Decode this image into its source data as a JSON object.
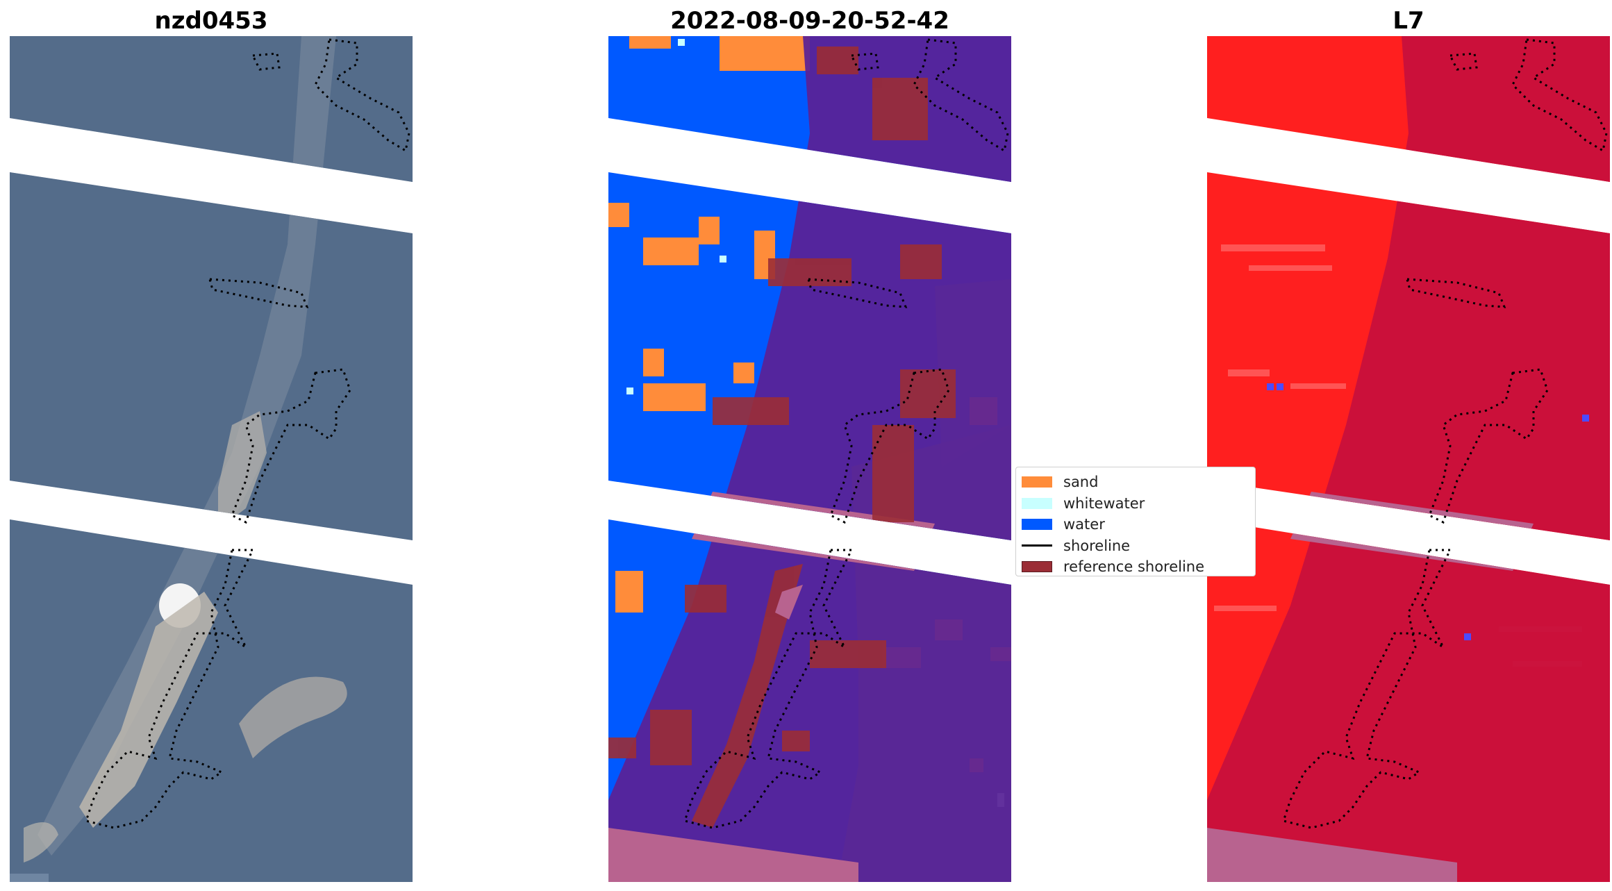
{
  "titles": {
    "left": "nzd0453",
    "center": "2022-08-09-20-52-42",
    "right": "L7"
  },
  "legend": {
    "items": [
      {
        "label": "sand",
        "color": "#ff8c3a",
        "kind": "patch"
      },
      {
        "label": "whitewater",
        "color": "#c8ffff",
        "kind": "patch"
      },
      {
        "label": "water",
        "color": "#0059ff",
        "kind": "patch"
      },
      {
        "label": "shoreline",
        "color": "#000000",
        "kind": "line"
      },
      {
        "label": "reference shoreline",
        "color": "#9b2d36",
        "kind": "patch"
      }
    ]
  },
  "colors": {
    "rgb_base": "#566e8c",
    "water": "#0059ff",
    "sand": "#ff8c3a",
    "whitewater": "#c8ffff",
    "classified_overlay": "#5a2196",
    "nodata_overlay": "#b8638f",
    "reference_fill": "#9b2d36",
    "index_bg": "#ff1f1f",
    "index_overlay": "#c8103c"
  }
}
